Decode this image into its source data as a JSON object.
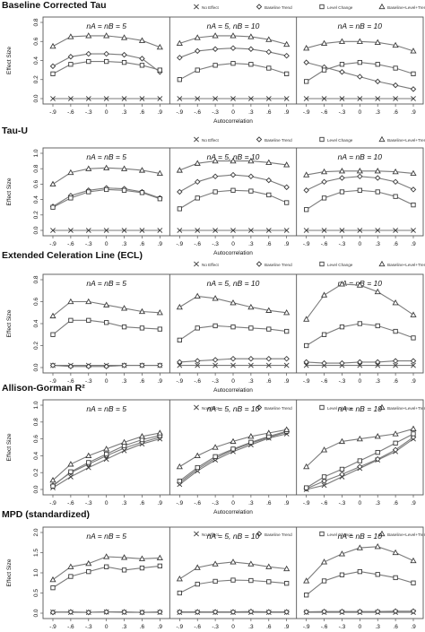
{
  "figure": {
    "xlabel": "Autocorrelation",
    "ylabel": "Effect Size",
    "xticks": [
      "-.9",
      "-.6",
      "-.3",
      "0",
      ".3",
      ".6",
      ".9"
    ],
    "legend": [
      "No Effect",
      "Baseline Trend",
      "Level Change",
      "Baseline+Level+Trend"
    ],
    "markers": [
      "x",
      "diamond",
      "square",
      "triangle"
    ],
    "colors": {
      "line": "#7a7a7a",
      "marker": "#3a3a3a",
      "frame": "#555555",
      "text": "#111111"
    }
  },
  "chart_data": [
    {
      "type": "line",
      "title": "Baseline Corrected Tau",
      "ylim": [
        0,
        0.8
      ],
      "yticks": [
        "0.0",
        "0.2",
        "0.4",
        "0.6",
        "0.8"
      ],
      "x": [
        "-.9",
        "-.6",
        "-.3",
        "0",
        ".3",
        ".6",
        ".9"
      ],
      "panels": [
        {
          "subtitle": "nA = nB = 5",
          "series": [
            {
              "name": "No Effect",
              "values": [
                0.0,
                0.0,
                0.0,
                0.0,
                0.0,
                0.0,
                0.0
              ]
            },
            {
              "name": "Baseline Trend",
              "values": [
                0.34,
                0.44,
                0.47,
                0.47,
                0.46,
                0.42,
                0.28
              ]
            },
            {
              "name": "Level Change",
              "values": [
                0.26,
                0.36,
                0.39,
                0.39,
                0.38,
                0.35,
                0.3
              ]
            },
            {
              "name": "Baseline+Level+Trend",
              "values": [
                0.55,
                0.65,
                0.66,
                0.66,
                0.64,
                0.61,
                0.54
              ]
            }
          ]
        },
        {
          "subtitle": "nA = 5, nB = 10",
          "series": [
            {
              "name": "No Effect",
              "values": [
                0.0,
                0.0,
                0.0,
                0.0,
                0.0,
                0.0,
                0.0
              ]
            },
            {
              "name": "Baseline Trend",
              "values": [
                0.43,
                0.5,
                0.52,
                0.53,
                0.52,
                0.49,
                0.45
              ]
            },
            {
              "name": "Level Change",
              "values": [
                0.2,
                0.3,
                0.35,
                0.37,
                0.36,
                0.32,
                0.26
              ]
            },
            {
              "name": "Baseline+Level+Trend",
              "values": [
                0.58,
                0.64,
                0.66,
                0.66,
                0.65,
                0.62,
                0.57
              ]
            }
          ]
        },
        {
          "subtitle": "nA = nB = 10",
          "series": [
            {
              "name": "No Effect",
              "values": [
                0.0,
                0.0,
                0.0,
                0.0,
                0.0,
                0.0,
                0.0
              ]
            },
            {
              "name": "Baseline Trend",
              "values": [
                0.38,
                0.33,
                0.28,
                0.23,
                0.18,
                0.14,
                0.1
              ]
            },
            {
              "name": "Level Change",
              "values": [
                0.18,
                0.3,
                0.36,
                0.38,
                0.36,
                0.32,
                0.26
              ]
            },
            {
              "name": "Baseline+Level+Trend",
              "values": [
                0.53,
                0.58,
                0.6,
                0.6,
                0.59,
                0.56,
                0.5
              ]
            }
          ]
        }
      ]
    },
    {
      "type": "line",
      "title": "Tau-U",
      "ylim": [
        0,
        1.0
      ],
      "yticks": [
        "0.0",
        "0.2",
        "0.4",
        "0.6",
        "0.8",
        "1.0"
      ],
      "x": [
        "-.9",
        "-.6",
        "-.3",
        "0",
        ".3",
        ".6",
        ".9"
      ],
      "panels": [
        {
          "subtitle": "nA = nB = 5",
          "series": [
            {
              "name": "No Effect",
              "values": [
                0.0,
                0.0,
                0.0,
                0.0,
                0.0,
                0.0,
                0.0
              ]
            },
            {
              "name": "Baseline Trend",
              "values": [
                0.31,
                0.45,
                0.52,
                0.55,
                0.54,
                0.5,
                0.42
              ]
            },
            {
              "name": "Level Change",
              "values": [
                0.3,
                0.42,
                0.5,
                0.53,
                0.52,
                0.49,
                0.41
              ]
            },
            {
              "name": "Baseline+Level+Trend",
              "values": [
                0.6,
                0.75,
                0.8,
                0.81,
                0.8,
                0.78,
                0.74
              ]
            }
          ]
        },
        {
          "subtitle": "nA = 5, nB = 10",
          "series": [
            {
              "name": "No Effect",
              "values": [
                0.0,
                0.0,
                0.0,
                0.0,
                0.0,
                0.0,
                0.0
              ]
            },
            {
              "name": "Baseline Trend",
              "values": [
                0.5,
                0.63,
                0.7,
                0.72,
                0.7,
                0.65,
                0.56
              ]
            },
            {
              "name": "Level Change",
              "values": [
                0.28,
                0.42,
                0.5,
                0.52,
                0.51,
                0.46,
                0.36
              ]
            },
            {
              "name": "Baseline+Level+Trend",
              "values": [
                0.78,
                0.87,
                0.9,
                0.9,
                0.9,
                0.88,
                0.85
              ]
            }
          ]
        },
        {
          "subtitle": "nA = nB = 10",
          "series": [
            {
              "name": "No Effect",
              "values": [
                0.0,
                0.0,
                0.0,
                0.0,
                0.0,
                0.0,
                0.0
              ]
            },
            {
              "name": "Baseline Trend",
              "values": [
                0.52,
                0.63,
                0.68,
                0.7,
                0.68,
                0.63,
                0.53
              ]
            },
            {
              "name": "Level Change",
              "values": [
                0.27,
                0.42,
                0.5,
                0.52,
                0.5,
                0.44,
                0.33
              ]
            },
            {
              "name": "Baseline+Level+Trend",
              "values": [
                0.72,
                0.76,
                0.77,
                0.77,
                0.77,
                0.76,
                0.74
              ]
            }
          ]
        }
      ]
    },
    {
      "type": "line",
      "title": "Extended Celeration Line (ECL)",
      "ylim": [
        0,
        0.8
      ],
      "yticks": [
        "0.0",
        "0.2",
        "0.4",
        "0.6",
        "0.8"
      ],
      "x": [
        "-.9",
        "-.6",
        "-.3",
        "0",
        ".3",
        ".6",
        ".9"
      ],
      "panels": [
        {
          "subtitle": "nA = nB = 5",
          "series": [
            {
              "name": "No Effect",
              "values": [
                0.02,
                0.02,
                0.02,
                0.02,
                0.02,
                0.02,
                0.02
              ]
            },
            {
              "name": "Baseline Trend",
              "values": [
                0.02,
                0.01,
                0.01,
                0.01,
                0.02,
                0.02,
                0.02
              ]
            },
            {
              "name": "Level Change",
              "values": [
                0.3,
                0.43,
                0.43,
                0.41,
                0.37,
                0.36,
                0.35
              ]
            },
            {
              "name": "Baseline+Level+Trend",
              "values": [
                0.47,
                0.6,
                0.6,
                0.57,
                0.54,
                0.51,
                0.5
              ]
            }
          ]
        },
        {
          "subtitle": "nA = 5, nB = 10",
          "series": [
            {
              "name": "No Effect",
              "values": [
                0.02,
                0.02,
                0.02,
                0.02,
                0.02,
                0.02,
                0.02
              ]
            },
            {
              "name": "Baseline Trend",
              "values": [
                0.05,
                0.06,
                0.07,
                0.08,
                0.08,
                0.08,
                0.08
              ]
            },
            {
              "name": "Level Change",
              "values": [
                0.25,
                0.36,
                0.38,
                0.37,
                0.36,
                0.35,
                0.33
              ]
            },
            {
              "name": "Baseline+Level+Trend",
              "values": [
                0.55,
                0.65,
                0.63,
                0.59,
                0.55,
                0.52,
                0.5
              ]
            }
          ]
        },
        {
          "subtitle": "nA = nB = 10",
          "series": [
            {
              "name": "No Effect",
              "values": [
                0.02,
                0.02,
                0.02,
                0.02,
                0.02,
                0.02,
                0.02
              ]
            },
            {
              "name": "Baseline Trend",
              "values": [
                0.05,
                0.04,
                0.04,
                0.05,
                0.05,
                0.06,
                0.06
              ]
            },
            {
              "name": "Level Change",
              "values": [
                0.2,
                0.3,
                0.37,
                0.4,
                0.38,
                0.33,
                0.27
              ]
            },
            {
              "name": "Baseline+Level+Trend",
              "values": [
                0.44,
                0.66,
                0.76,
                0.75,
                0.69,
                0.59,
                0.48
              ]
            }
          ]
        }
      ]
    },
    {
      "type": "line",
      "title": "Allison-Gorman R²",
      "ylim": [
        0,
        1.0
      ],
      "yticks": [
        "0.0",
        "0.2",
        "0.4",
        "0.6",
        "0.8",
        "1.0"
      ],
      "x": [
        "-.9",
        "-.6",
        "-.3",
        "0",
        ".3",
        ".6",
        ".9"
      ],
      "panels": [
        {
          "subtitle": "nA = nB = 5",
          "series": [
            {
              "name": "No Effect",
              "values": [
                0.02,
                0.15,
                0.26,
                0.36,
                0.46,
                0.54,
                0.6
              ]
            },
            {
              "name": "Baseline Trend",
              "values": [
                0.05,
                0.2,
                0.3,
                0.4,
                0.49,
                0.56,
                0.62
              ]
            },
            {
              "name": "Level Change",
              "values": [
                0.04,
                0.21,
                0.32,
                0.42,
                0.52,
                0.59,
                0.64
              ]
            },
            {
              "name": "Baseline+Level+Trend",
              "values": [
                0.11,
                0.3,
                0.4,
                0.48,
                0.56,
                0.63,
                0.67
              ]
            }
          ]
        },
        {
          "subtitle": "nA = 5, nB = 10",
          "series": [
            {
              "name": "No Effect",
              "values": [
                0.06,
                0.22,
                0.35,
                0.45,
                0.53,
                0.61,
                0.66
              ]
            },
            {
              "name": "Baseline Trend",
              "values": [
                0.08,
                0.24,
                0.37,
                0.47,
                0.55,
                0.62,
                0.68
              ]
            },
            {
              "name": "Level Change",
              "values": [
                0.1,
                0.26,
                0.39,
                0.48,
                0.56,
                0.63,
                0.69
              ]
            },
            {
              "name": "Baseline+Level+Trend",
              "values": [
                0.27,
                0.4,
                0.5,
                0.57,
                0.63,
                0.67,
                0.71
              ]
            }
          ]
        },
        {
          "subtitle": "nA = nB = 10",
          "series": [
            {
              "name": "No Effect",
              "values": [
                0.0,
                0.05,
                0.15,
                0.25,
                0.35,
                0.45,
                0.6
              ]
            },
            {
              "name": "Baseline Trend",
              "values": [
                0.01,
                0.1,
                0.18,
                0.27,
                0.36,
                0.47,
                0.62
              ]
            },
            {
              "name": "Level Change",
              "values": [
                0.02,
                0.15,
                0.24,
                0.34,
                0.44,
                0.55,
                0.66
              ]
            },
            {
              "name": "Baseline+Level+Trend",
              "values": [
                0.27,
                0.47,
                0.57,
                0.6,
                0.63,
                0.66,
                0.72
              ]
            }
          ]
        }
      ]
    },
    {
      "type": "line",
      "title": "MPD (standardized)",
      "ylim": [
        0,
        2.0
      ],
      "yticks": [
        "0.0",
        "0.5",
        "1.0",
        "1.5",
        "2.0"
      ],
      "x": [
        "-.9",
        "-.6",
        "-.3",
        "0",
        ".3",
        ".6",
        ".9"
      ],
      "panels": [
        {
          "subtitle": "nA = nB = 5",
          "series": [
            {
              "name": "No Effect",
              "values": [
                0.03,
                0.02,
                0.02,
                0.03,
                0.02,
                0.02,
                0.02
              ]
            },
            {
              "name": "Baseline Trend",
              "values": [
                0.02,
                0.03,
                0.02,
                0.03,
                0.03,
                0.02,
                0.03
              ]
            },
            {
              "name": "Level Change",
              "values": [
                0.63,
                0.91,
                1.03,
                1.15,
                1.07,
                1.12,
                1.17
              ]
            },
            {
              "name": "Baseline+Level+Trend",
              "values": [
                0.83,
                1.15,
                1.23,
                1.4,
                1.38,
                1.35,
                1.37
              ]
            }
          ]
        },
        {
          "subtitle": "nA = 5, nB = 10",
          "series": [
            {
              "name": "No Effect",
              "values": [
                0.02,
                0.02,
                0.02,
                0.02,
                0.02,
                0.02,
                0.02
              ]
            },
            {
              "name": "Baseline Trend",
              "values": [
                0.03,
                0.03,
                0.03,
                0.03,
                0.04,
                0.03,
                0.03
              ]
            },
            {
              "name": "Level Change",
              "values": [
                0.5,
                0.72,
                0.79,
                0.82,
                0.81,
                0.78,
                0.74
              ]
            },
            {
              "name": "Baseline+Level+Trend",
              "values": [
                0.85,
                1.13,
                1.22,
                1.27,
                1.22,
                1.15,
                1.1
              ]
            }
          ]
        },
        {
          "subtitle": "nA = nB = 10",
          "series": [
            {
              "name": "No Effect",
              "values": [
                0.02,
                0.02,
                0.02,
                0.02,
                0.02,
                0.02,
                0.02
              ]
            },
            {
              "name": "Baseline Trend",
              "values": [
                0.03,
                0.04,
                0.04,
                0.04,
                0.04,
                0.05,
                0.05
              ]
            },
            {
              "name": "Level Change",
              "values": [
                0.45,
                0.8,
                0.95,
                1.03,
                0.96,
                0.88,
                0.75
              ]
            },
            {
              "name": "Baseline+Level+Trend",
              "values": [
                0.8,
                1.27,
                1.47,
                1.62,
                1.65,
                1.5,
                1.3
              ]
            }
          ]
        }
      ]
    }
  ]
}
